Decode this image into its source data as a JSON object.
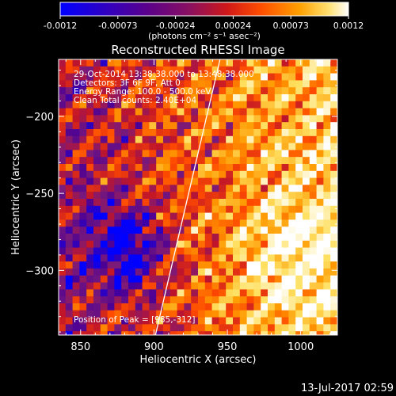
{
  "chart_data": {
    "type": "heatmap",
    "title": "Reconstructed RHESSI Image",
    "xlabel": "Heliocentric X (arcsec)",
    "ylabel": "Heliocentric Y (arcsec)",
    "xlim": [
      835,
      1025
    ],
    "ylim": [
      -342,
      -163
    ],
    "xticks": [
      850,
      900,
      950,
      1000
    ],
    "yticks": [
      -200,
      -250,
      -300
    ],
    "colorbar": {
      "min": -0.0012,
      "max": 0.0012,
      "ticks": [
        "-0.0012",
        "-0.00073",
        "-0.00024",
        "0.00024",
        "0.00073",
        "0.0012"
      ],
      "unit_label": "(photons cm⁻² s⁻¹ asec⁻²)",
      "colormap": [
        "#0000ff",
        "#4b0096",
        "#7a1a7a",
        "#c0142a",
        "#ff4a00",
        "#ff9a00",
        "#ffe060",
        "#ffffff"
      ]
    },
    "annotations": {
      "time_range": "29-Oct-2014 13:38:38.000 to 13:48:38.000",
      "detectors": "Detectors: 3F 6F 9F, Att 0",
      "energy_range": "Energy Range: 100.0 - 500.0 keV",
      "clean_counts": "Clean   Total counts: 2.40E+04",
      "peak": "Position of Peak = [985,-312]"
    },
    "limb_line": {
      "x1": 901,
      "y1": -342,
      "x2": 945,
      "y2": -163
    },
    "peak_position": [
      985,
      -312
    ],
    "grid": false
  },
  "footer_date": "13-Jul-2017 02:59"
}
